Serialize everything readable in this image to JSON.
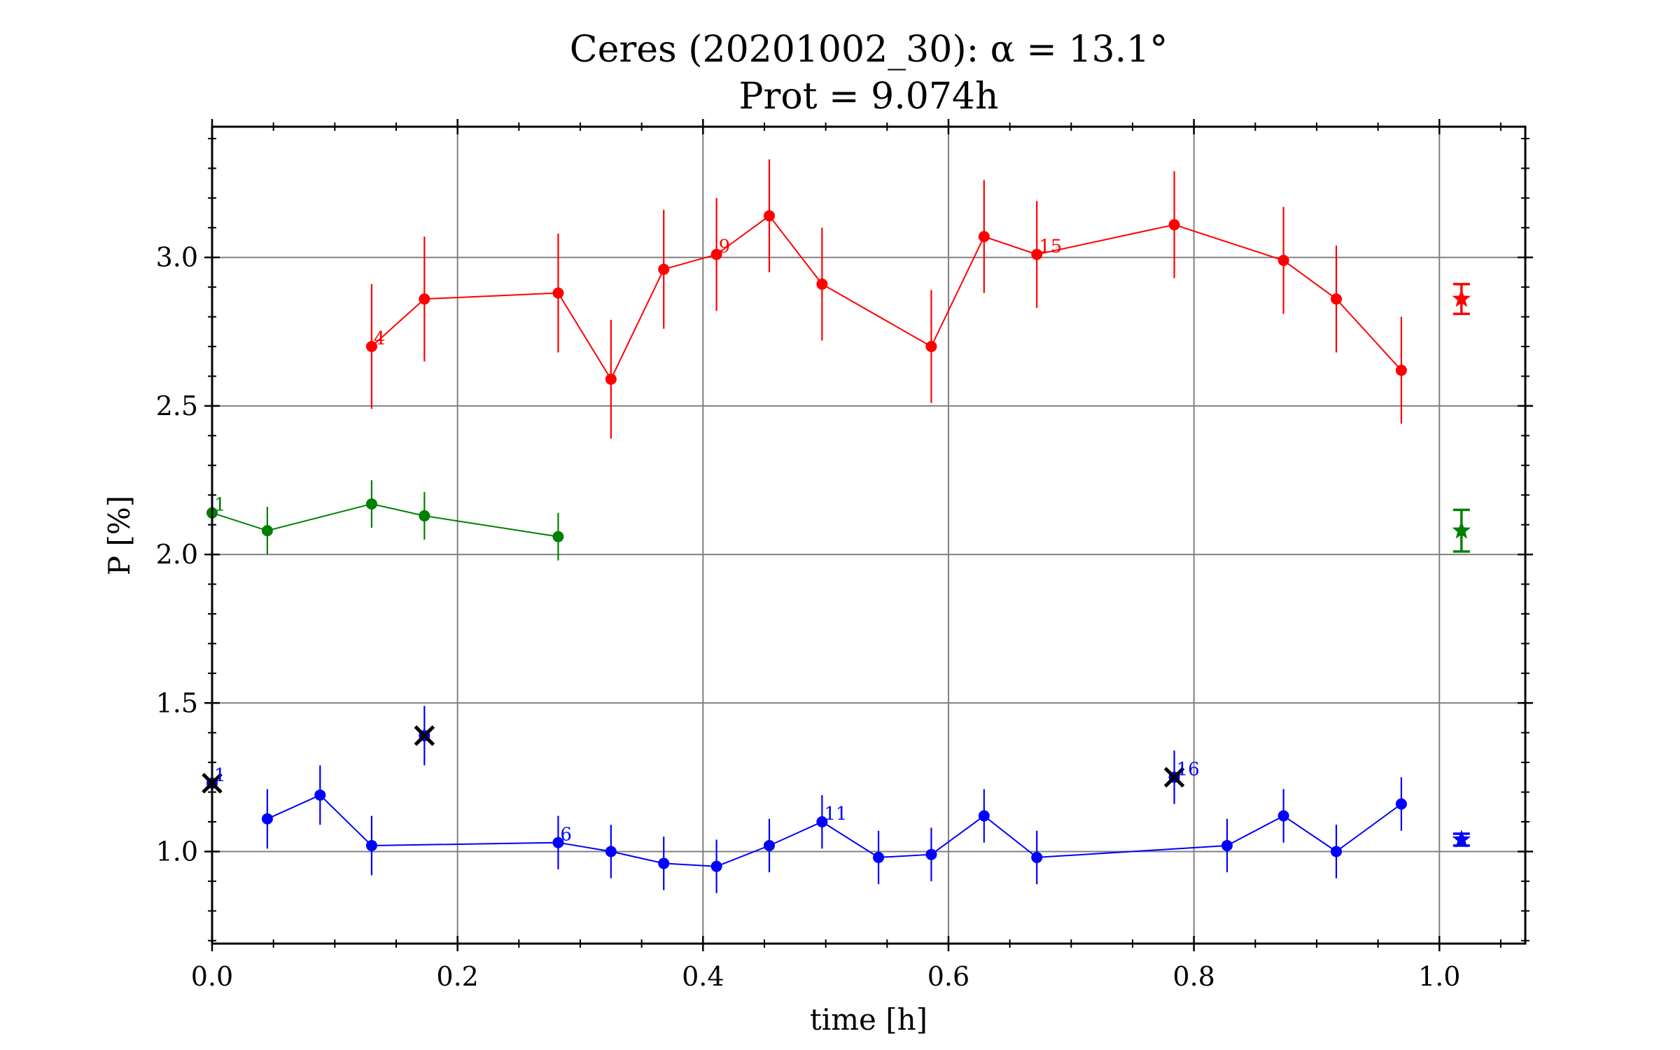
{
  "chart_data": {
    "type": "scatter",
    "title": [
      "Ceres (20201002_30): α = 13.1°",
      "Prot = 9.074h"
    ],
    "xlabel": "time [h]",
    "ylabel": "P [%]",
    "xlim": [
      0.0,
      1.07
    ],
    "ylim": [
      0.69,
      3.44
    ],
    "xticks": [
      0.0,
      0.2,
      0.4,
      0.6,
      0.8,
      1.0
    ],
    "xtick_labels": [
      "0.0",
      "0.2",
      "0.4",
      "0.6",
      "0.8",
      "1.0"
    ],
    "yticks": [
      1.0,
      1.5,
      2.0,
      2.5,
      3.0
    ],
    "ytick_labels": [
      "1.0",
      "1.5",
      "2.0",
      "2.5",
      "3.0"
    ],
    "grid": true,
    "series": [
      {
        "color": "#ff0000",
        "points": [
          {
            "x": 0.13,
            "y": 2.7,
            "err": 0.21
          },
          {
            "x": 0.173,
            "y": 2.86,
            "err": 0.21
          },
          {
            "x": 0.282,
            "y": 2.88,
            "err": 0.2
          },
          {
            "x": 0.325,
            "y": 2.59,
            "err": 0.2
          },
          {
            "x": 0.368,
            "y": 2.96,
            "err": 0.2
          },
          {
            "x": 0.411,
            "y": 3.01,
            "err": 0.19
          },
          {
            "x": 0.454,
            "y": 3.14,
            "err": 0.19
          },
          {
            "x": 0.497,
            "y": 2.91,
            "err": 0.19
          },
          {
            "x": 0.586,
            "y": 2.7,
            "err": 0.19
          },
          {
            "x": 0.629,
            "y": 3.07,
            "err": 0.19
          },
          {
            "x": 0.672,
            "y": 3.01,
            "err": 0.18
          },
          {
            "x": 0.784,
            "y": 3.11,
            "err": 0.18
          },
          {
            "x": 0.873,
            "y": 2.99,
            "err": 0.18
          },
          {
            "x": 0.916,
            "y": 2.86,
            "err": 0.18
          },
          {
            "x": 0.969,
            "y": 2.62,
            "err": 0.18
          }
        ],
        "labels": [
          {
            "x": 0.13,
            "y": 2.7,
            "text": "4"
          },
          {
            "x": 0.411,
            "y": 3.01,
            "text": "9"
          },
          {
            "x": 0.672,
            "y": 3.01,
            "text": "15"
          }
        ],
        "mean": {
          "x": 1.018,
          "y": 2.86,
          "err": 0.05
        }
      },
      {
        "color": "#008000",
        "points": [
          {
            "x": 0.0,
            "y": 2.14,
            "err": 0.06
          },
          {
            "x": 0.045,
            "y": 2.08,
            "err": 0.08
          },
          {
            "x": 0.13,
            "y": 2.17,
            "err": 0.08
          },
          {
            "x": 0.173,
            "y": 2.13,
            "err": 0.08
          },
          {
            "x": 0.282,
            "y": 2.06,
            "err": 0.08
          }
        ],
        "labels": [
          {
            "x": 0.0,
            "y": 2.14,
            "text": "1"
          }
        ],
        "mean": {
          "x": 1.018,
          "y": 2.08,
          "err": 0.07
        }
      },
      {
        "color": "#0000ff",
        "points": [
          {
            "x": 0.045,
            "y": 1.11,
            "err": 0.1
          },
          {
            "x": 0.088,
            "y": 1.19,
            "err": 0.1
          },
          {
            "x": 0.13,
            "y": 1.02,
            "err": 0.1
          },
          {
            "x": 0.282,
            "y": 1.03,
            "err": 0.09
          },
          {
            "x": 0.325,
            "y": 1.0,
            "err": 0.09
          },
          {
            "x": 0.368,
            "y": 0.96,
            "err": 0.09
          },
          {
            "x": 0.411,
            "y": 0.95,
            "err": 0.09
          },
          {
            "x": 0.454,
            "y": 1.02,
            "err": 0.09
          },
          {
            "x": 0.497,
            "y": 1.1,
            "err": 0.09
          },
          {
            "x": 0.543,
            "y": 0.98,
            "err": 0.09
          },
          {
            "x": 0.586,
            "y": 0.99,
            "err": 0.09
          },
          {
            "x": 0.629,
            "y": 1.12,
            "err": 0.09
          },
          {
            "x": 0.672,
            "y": 0.98,
            "err": 0.09
          },
          {
            "x": 0.827,
            "y": 1.02,
            "err": 0.09
          },
          {
            "x": 0.873,
            "y": 1.12,
            "err": 0.09
          },
          {
            "x": 0.916,
            "y": 1.0,
            "err": 0.09
          },
          {
            "x": 0.969,
            "y": 1.16,
            "err": 0.09
          }
        ],
        "rejected": [
          {
            "x": 0.0,
            "y": 1.23,
            "err": 0.09
          },
          {
            "x": 0.173,
            "y": 1.39,
            "err": 0.1
          },
          {
            "x": 0.784,
            "y": 1.25,
            "err": 0.09
          }
        ],
        "labels": [
          {
            "x": 0.0,
            "y": 1.23,
            "text": "1"
          },
          {
            "x": 0.282,
            "y": 1.03,
            "text": "6"
          },
          {
            "x": 0.497,
            "y": 1.1,
            "text": "11"
          },
          {
            "x": 0.784,
            "y": 1.25,
            "text": "16"
          }
        ],
        "mean": {
          "x": 1.018,
          "y": 1.04,
          "err": 0.02
        }
      }
    ]
  }
}
